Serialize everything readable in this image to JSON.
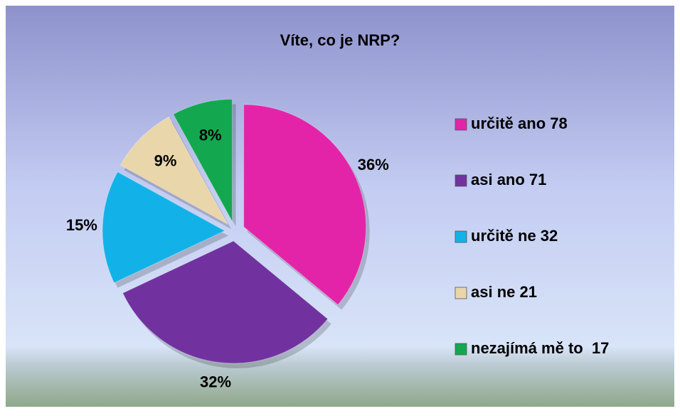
{
  "chart_data": {
    "type": "pie",
    "title": "Víte, co je NRP?",
    "categories": [
      "určitě ano 78",
      "asi ano 71",
      "určitě ne 32",
      "asi ne 21",
      "nezajímá mě to  17"
    ],
    "values": [
      36,
      32,
      15,
      9,
      8
    ],
    "value_labels": [
      "36%",
      "32%",
      "15%",
      "9%",
      "8%"
    ],
    "colors": [
      "#e324a9",
      "#7132a0",
      "#12b2e8",
      "#e9d6aa",
      "#13a84f"
    ],
    "legend": "right"
  }
}
